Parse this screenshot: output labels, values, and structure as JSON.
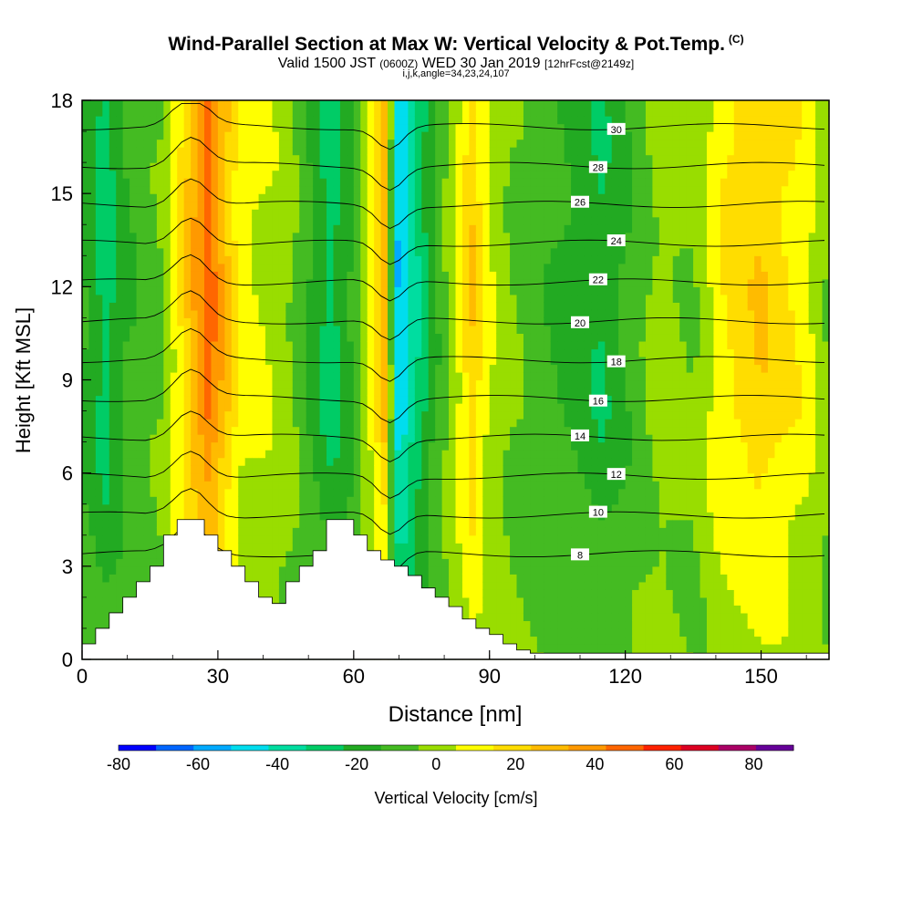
{
  "chart_data": {
    "type": "contour",
    "title": "Wind-Parallel Section at Max W: Vertical Velocity & Pot.Temp.",
    "title_mark": "(C)",
    "subtitle_prefix": "Valid 1500 JST",
    "subtitle_utc": "(0600Z)",
    "subtitle_date": "WED 30 Jan 2019",
    "subtitle_fcst": "[12hrFcst@2149z]",
    "subtitle2": "i,j,k,angle=34,23,24,107",
    "xlabel": "Distance [nm]",
    "ylabel": "Height [Kft MSL]",
    "xlim": [
      0,
      165
    ],
    "ylim": [
      0,
      18
    ],
    "x_ticks": [
      "0",
      "30",
      "60",
      "90",
      "120",
      "150"
    ],
    "y_ticks": [
      "0",
      "3",
      "6",
      "9",
      "12",
      "15",
      "18"
    ],
    "colorbar": {
      "label": "Vertical Velocity [cm/s]",
      "tick_labels": [
        "-80",
        "-60",
        "-40",
        "-20",
        "0",
        "20",
        "40",
        "60",
        "80"
      ],
      "levels": [
        -80,
        -70,
        -60,
        -50,
        -40,
        -30,
        -20,
        -10,
        0,
        10,
        20,
        30,
        40,
        50,
        60,
        70,
        80,
        90
      ],
      "colors": [
        "#0000ff",
        "#0066ff",
        "#00aaff",
        "#00ddee",
        "#00dda0",
        "#00cc66",
        "#22aa22",
        "#44bb22",
        "#99dd00",
        "#ffff00",
        "#ffdd00",
        "#ffbb00",
        "#ff9900",
        "#ff6600",
        "#ff2200",
        "#dd0022",
        "#aa0066",
        "#660099"
      ]
    },
    "series": [
      {
        "kind": "vertical_velocity_bands",
        "x": [
          0,
          5,
          10,
          18,
          25,
          28,
          35,
          45,
          50,
          55,
          60,
          64,
          67,
          70,
          73,
          78,
          82,
          86,
          90,
          95,
          105,
          115,
          120,
          128,
          135,
          142,
          150,
          160,
          165
        ],
        "w": [
          -10,
          -25,
          -10,
          0,
          40,
          55,
          15,
          5,
          -10,
          -25,
          -10,
          15,
          35,
          -55,
          -35,
          -10,
          5,
          30,
          10,
          0,
          -10,
          -20,
          -10,
          5,
          0,
          20,
          30,
          15,
          0
        ]
      },
      {
        "kind": "potential_temperature_isentropes",
        "labels": [
          "8",
          "10",
          "12",
          "14",
          "16",
          "18",
          "20",
          "22",
          "24",
          "26",
          "28",
          "30"
        ]
      }
    ],
    "terrain": {
      "x": [
        0,
        3,
        6,
        9,
        12,
        15,
        18,
        21,
        24,
        27,
        30,
        33,
        36,
        39,
        42,
        45,
        48,
        51,
        54,
        57,
        60,
        63,
        66,
        69,
        72,
        75,
        78,
        81,
        84,
        87,
        90,
        93,
        96,
        99,
        165
      ],
      "h": [
        0.5,
        1.0,
        1.5,
        2.0,
        2.5,
        3.0,
        4.0,
        4.5,
        4.5,
        4.0,
        3.5,
        3.0,
        2.5,
        2.0,
        1.8,
        2.5,
        3.0,
        3.5,
        4.5,
        4.5,
        4.0,
        3.5,
        3.2,
        3.0,
        2.7,
        2.3,
        2.0,
        1.7,
        1.3,
        1.0,
        0.8,
        0.5,
        0.3,
        0.2,
        0.2
      ]
    }
  }
}
